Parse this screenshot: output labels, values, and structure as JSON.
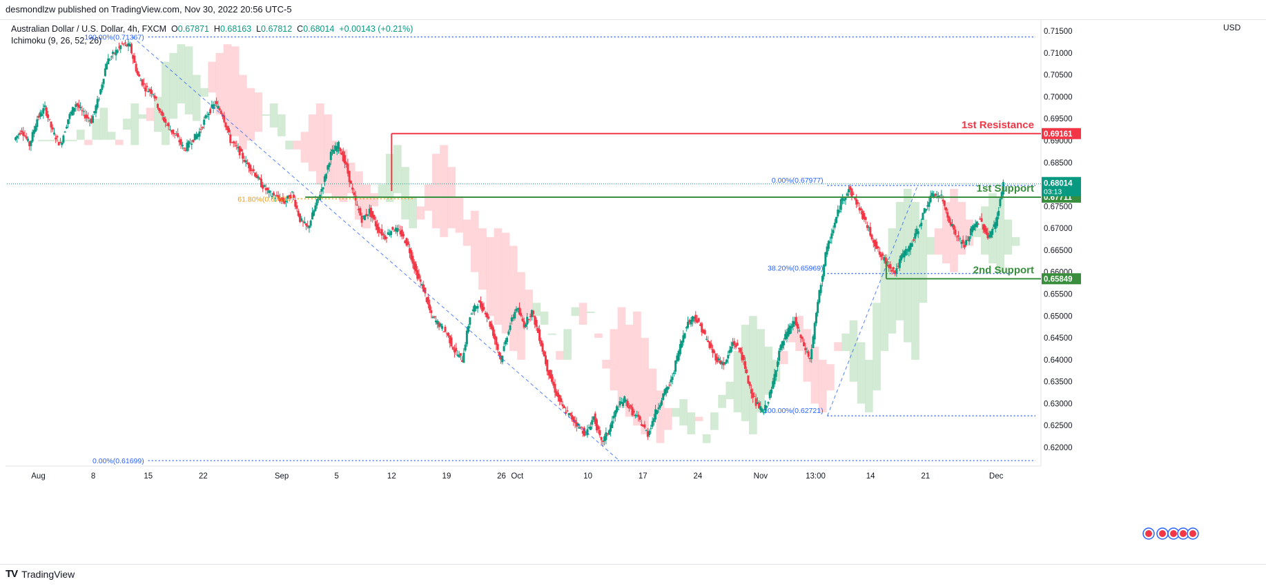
{
  "header": {
    "published": "desmondlzw published on TradingView.com, Nov 30, 2022 20:56 UTC-5",
    "symbol": "Australian Dollar / U.S. Dollar, 4h, FXCM",
    "open_label": "O",
    "open": "0.67871",
    "high_label": "H",
    "high": "0.68163",
    "low_label": "L",
    "low": "0.67812",
    "close_label": "C",
    "close": "0.68014",
    "change": "+0.00143 (+0.21%)",
    "indicator": "Ichimoku (9, 26, 52, 26)",
    "currency": "USD"
  },
  "footer": {
    "logo": "TV",
    "brand": "TradingView"
  },
  "colors": {
    "up": "#089981",
    "down": "#f23645",
    "resistance": "#f23645",
    "support": "#388e3c",
    "fib_blue": "#2962ff",
    "fib_orange": "#f59d0c",
    "cloud_green": "#c8e6c9",
    "cloud_red": "#ffcdd2"
  },
  "chart_data": {
    "type": "candlestick",
    "y_axis": {
      "ylim": [
        0.6167,
        0.7158
      ],
      "ticks": [
        "0.71500",
        "0.71000",
        "0.70500",
        "0.70000",
        "0.69500",
        "0.69000",
        "0.68500",
        "0.68000",
        "0.67500",
        "0.67000",
        "0.66500",
        "0.66000",
        "0.65500",
        "0.65000",
        "0.64500",
        "0.64000",
        "0.63500",
        "0.63000",
        "0.62500",
        "0.62000"
      ]
    },
    "x_axis": {
      "labels": [
        "Aug",
        "8",
        "15",
        "22",
        "Sep",
        "5",
        "12",
        "19",
        "26",
        "Oct",
        "10",
        "17",
        "24",
        "Nov",
        "13:00",
        "14",
        "21",
        "Dec"
      ],
      "label_positions_days": [
        0,
        7,
        14,
        21,
        31,
        38,
        45,
        52,
        59,
        61,
        70,
        77,
        84,
        92,
        99,
        106,
        113,
        122
      ]
    },
    "series_closes": [
      0.6902,
      0.6925,
      0.689,
      0.695,
      0.6975,
      0.692,
      0.689,
      0.695,
      0.6985,
      0.696,
      0.6945,
      0.7,
      0.708,
      0.71,
      0.712,
      0.7115,
      0.705,
      0.702,
      0.701,
      0.696,
      0.693,
      0.691,
      0.688,
      0.69,
      0.692,
      0.696,
      0.6985,
      0.696,
      0.69,
      0.688,
      0.685,
      0.683,
      0.68,
      0.678,
      0.677,
      0.676,
      0.678,
      0.672,
      0.67,
      0.675,
      0.68,
      0.687,
      0.689,
      0.684,
      0.677,
      0.672,
      0.674,
      0.67,
      0.668,
      0.67,
      0.669,
      0.666,
      0.66,
      0.656,
      0.65,
      0.648,
      0.646,
      0.642,
      0.64,
      0.65,
      0.653,
      0.651,
      0.646,
      0.64,
      0.647,
      0.652,
      0.648,
      0.651,
      0.645,
      0.638,
      0.633,
      0.629,
      0.627,
      0.625,
      0.623,
      0.627,
      0.621,
      0.624,
      0.629,
      0.631,
      0.628,
      0.626,
      0.623,
      0.628,
      0.632,
      0.635,
      0.642,
      0.648,
      0.65,
      0.647,
      0.643,
      0.64,
      0.639,
      0.644,
      0.642,
      0.635,
      0.63,
      0.628,
      0.633,
      0.642,
      0.646,
      0.649,
      0.644,
      0.64,
      0.653,
      0.664,
      0.67,
      0.676,
      0.679,
      0.676,
      0.672,
      0.668,
      0.664,
      0.662,
      0.66,
      0.664,
      0.666,
      0.67,
      0.675,
      0.678,
      0.677,
      0.672,
      0.668,
      0.666,
      0.67,
      0.672,
      0.668,
      0.671,
      0.68
    ],
    "ichimoku_cloud": {
      "green_segments": "bullish kumo (light green)",
      "red_segments": "bearish kumo (light red)"
    },
    "levels": [
      {
        "name": "1st Resistance",
        "value": 0.69161,
        "label": "0.69161",
        "color": "#f23645"
      },
      {
        "name": "1st Support",
        "value": 0.67711,
        "label": "0.67711",
        "color": "#388e3c"
      },
      {
        "name": "2nd Support",
        "value": 0.65849,
        "label": "0.65849",
        "color": "#388e3c"
      }
    ],
    "current_price": {
      "value": 0.68014,
      "label": "0.68014",
      "countdown": "03:13"
    },
    "fib_left": [
      {
        "text": "100.00%(0.71367)",
        "value": 0.71367
      },
      {
        "text": "61.80%(0.67674)",
        "value": 0.67674
      },
      {
        "text": "0.00%(0.61699)",
        "value": 0.61699
      }
    ],
    "fib_right": [
      {
        "text": "0.00%(0.67977)",
        "value": 0.67977
      },
      {
        "text": "38.20%(0.65969)",
        "value": 0.65969
      },
      {
        "text": "100.00%(0.62721)",
        "value": 0.62721
      }
    ],
    "annotations": [
      "1st Resistance",
      "1st Support",
      "2nd Support"
    ]
  }
}
